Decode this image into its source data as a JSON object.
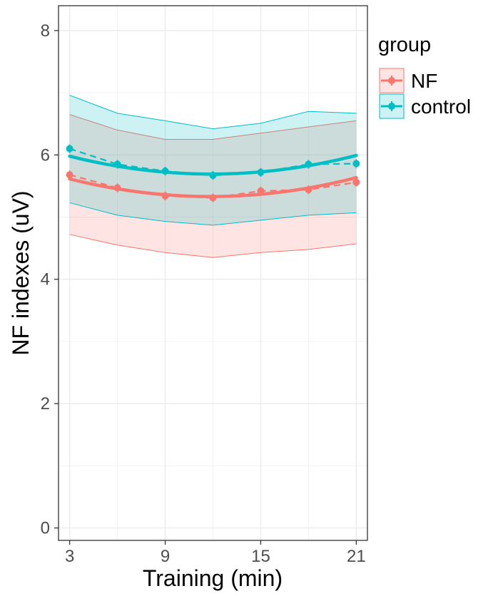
{
  "chart_data": {
    "type": "line",
    "xlabel": "Training (min)",
    "ylabel": "NF indexes (uV)",
    "xlim": [
      2.3,
      21.7
    ],
    "ylim": [
      -0.2,
      8.4
    ],
    "x_ticks": [
      3,
      9,
      15,
      21
    ],
    "y_ticks": [
      0,
      2,
      4,
      6,
      8
    ],
    "x_minor_grid": [
      6,
      12,
      18
    ],
    "y_minor_grid": [
      1,
      3,
      5,
      7
    ],
    "grid": true,
    "legend": {
      "title": "group",
      "placement": "right",
      "entries": [
        "NF",
        "control"
      ]
    },
    "x": [
      3,
      6,
      9,
      12,
      15,
      18,
      21
    ],
    "series": [
      {
        "name": "NF",
        "color": "#F8766D",
        "fill": "#F8766D",
        "observed": [
          5.68,
          5.47,
          5.34,
          5.31,
          5.42,
          5.44,
          5.56
        ],
        "fit": [
          5.62,
          5.45,
          5.35,
          5.33,
          5.38,
          5.47,
          5.63
        ],
        "ribbon_upper": [
          6.65,
          6.4,
          6.25,
          6.25,
          6.35,
          6.45,
          6.55
        ],
        "ribbon_lower": [
          4.72,
          4.55,
          4.43,
          4.35,
          4.43,
          4.48,
          4.57
        ]
      },
      {
        "name": "control",
        "color": "#00BFC4",
        "fill": "#00BFC4",
        "observed": [
          6.1,
          5.85,
          5.74,
          5.67,
          5.72,
          5.85,
          5.86
        ],
        "fit": [
          5.98,
          5.82,
          5.72,
          5.69,
          5.73,
          5.83,
          5.99
        ],
        "ribbon_upper": [
          6.96,
          6.67,
          6.55,
          6.42,
          6.51,
          6.7,
          6.67
        ],
        "ribbon_lower": [
          5.23,
          5.03,
          4.93,
          4.87,
          4.95,
          5.03,
          5.07
        ]
      }
    ]
  }
}
